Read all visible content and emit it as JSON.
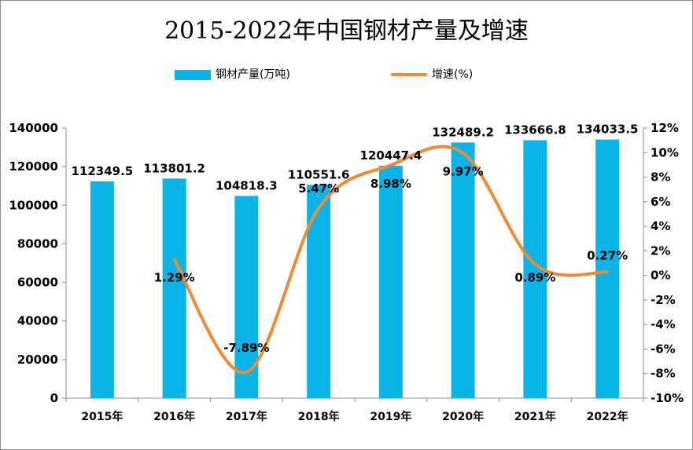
{
  "chart_data": {
    "type": "bar",
    "title": "2015-2022年中国钢材产量及增速",
    "categories": [
      "2015年",
      "2016年",
      "2017年",
      "2018年",
      "2019年",
      "2020年",
      "2021年",
      "2022年"
    ],
    "series": [
      {
        "name": "钢材产量(万吨)",
        "type": "bar",
        "axis": "left",
        "color": "#0ab4e8",
        "values": [
          112349.5,
          113801.2,
          104818.3,
          110551.6,
          120447.4,
          132489.2,
          133666.8,
          134033.5
        ],
        "labels": [
          "112349.5",
          "113801.2",
          "104818.3",
          "110551.6",
          "120447.4",
          "132489.2",
          "133666.8",
          "134033.5"
        ]
      },
      {
        "name": "增速(%)",
        "type": "line",
        "axis": "right",
        "color": "#ef8a35",
        "values": [
          null,
          1.29,
          -7.89,
          5.47,
          8.98,
          9.97,
          0.89,
          0.27
        ],
        "labels": [
          "",
          "1.29%",
          "-7.89%",
          "5.47%",
          "8.98%",
          "9.97%",
          "0.89%",
          "0.27%"
        ]
      }
    ],
    "y_left": {
      "min": 0,
      "max": 140000,
      "ticks": [
        "0",
        "20000",
        "40000",
        "60000",
        "80000",
        "100000",
        "120000",
        "140000"
      ]
    },
    "y_right": {
      "min": -10,
      "max": 12,
      "ticks": [
        "-10%",
        "-8%",
        "-6%",
        "-4%",
        "-2%",
        "0%",
        "2%",
        "4%",
        "6%",
        "8%",
        "10%",
        "12%"
      ]
    },
    "legend": "top",
    "grid": false
  }
}
